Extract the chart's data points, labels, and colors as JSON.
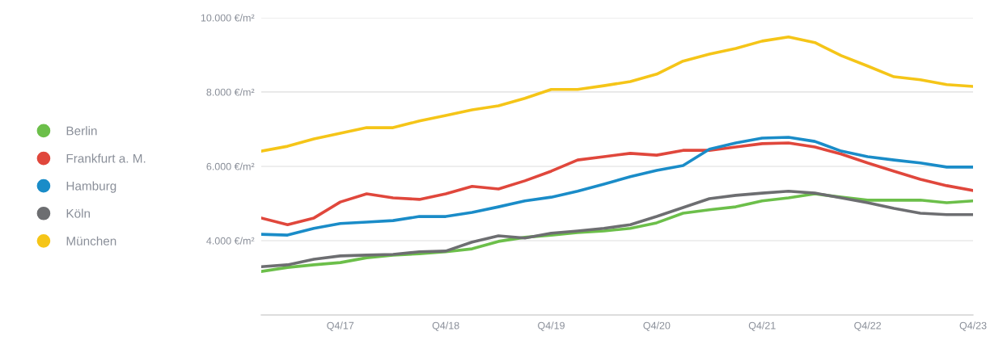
{
  "chart_data": {
    "type": "line",
    "categories": [
      null,
      null,
      null,
      "Q4/17",
      null,
      null,
      null,
      "Q4/18",
      null,
      null,
      null,
      "Q4/19",
      null,
      null,
      null,
      "Q4/20",
      null,
      null,
      null,
      "Q4/21",
      null,
      null,
      null,
      "Q4/22",
      null,
      null,
      null,
      "Q4/23"
    ],
    "series": [
      {
        "name": "Berlin",
        "color": "#6cbf4a",
        "values": [
          3170,
          3280,
          3350,
          3410,
          3540,
          3610,
          3650,
          3700,
          3780,
          3980,
          4090,
          4150,
          4220,
          4260,
          4330,
          4480,
          4740,
          4830,
          4910,
          5070,
          5150,
          5260,
          5170,
          5090,
          5090,
          5090,
          5020,
          5070
        ]
      },
      {
        "name": "Frankfurt a. M.",
        "color": "#e0473c",
        "values": [
          4610,
          4430,
          4610,
          5040,
          5260,
          5150,
          5110,
          5260,
          5460,
          5390,
          5610,
          5870,
          6170,
          6260,
          6350,
          6300,
          6430,
          6430,
          6520,
          6610,
          6630,
          6520,
          6330,
          6090,
          5870,
          5650,
          5480,
          5350
        ]
      },
      {
        "name": "Hamburg",
        "color": "#1a8cc8",
        "values": [
          4170,
          4150,
          4330,
          4460,
          4500,
          4540,
          4650,
          4650,
          4760,
          4910,
          5070,
          5170,
          5330,
          5520,
          5720,
          5890,
          6020,
          6460,
          6630,
          6760,
          6780,
          6670,
          6410,
          6260,
          6170,
          6090,
          5980,
          5980
        ]
      },
      {
        "name": "Köln",
        "color": "#6d6e71",
        "values": [
          3300,
          3350,
          3500,
          3590,
          3610,
          3630,
          3700,
          3720,
          3960,
          4130,
          4070,
          4200,
          4260,
          4330,
          4430,
          4650,
          4890,
          5130,
          5220,
          5280,
          5330,
          5280,
          5150,
          5020,
          4870,
          4740,
          4700,
          4700
        ]
      },
      {
        "name": "München",
        "color": "#f5c518",
        "values": [
          6410,
          6540,
          6740,
          6890,
          7040,
          7040,
          7220,
          7370,
          7520,
          7630,
          7830,
          8070,
          8070,
          8170,
          8280,
          8480,
          8830,
          9020,
          9170,
          9370,
          9480,
          9330,
          8980,
          8700,
          8410,
          8330,
          8200,
          8150
        ]
      }
    ],
    "ylim": [
      2000,
      10000
    ],
    "yticks": [
      {
        "value": 4000,
        "label": "4.000 €/m²"
      },
      {
        "value": 6000,
        "label": "6.000 €/m²"
      },
      {
        "value": 8000,
        "label": "8.000 €/m²"
      },
      {
        "value": 10000,
        "label": "10.000 €/m²"
      }
    ],
    "grid": "y",
    "legend": "left",
    "marker": "none",
    "line_style": "solid"
  }
}
